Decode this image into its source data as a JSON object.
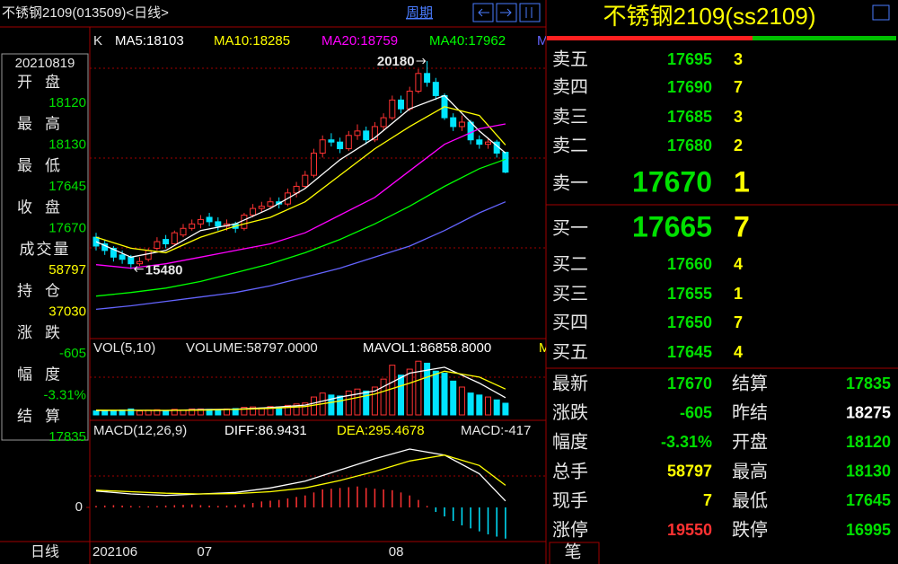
{
  "header": {
    "title": "不锈钢2109(013509)<日线>",
    "period": "周期"
  },
  "info_panel": {
    "date": "20210819",
    "items": [
      {
        "label": "开盘",
        "value": "18120",
        "color": "#00e000"
      },
      {
        "label": "最高",
        "value": "18130",
        "color": "#00e000"
      },
      {
        "label": "最低",
        "value": "17645",
        "color": "#00e000"
      },
      {
        "label": "收盘",
        "value": "17670",
        "color": "#00e000"
      },
      {
        "label": "成交量",
        "value": "58797",
        "color": "#ffff00"
      },
      {
        "label": "持仓",
        "value": "37030",
        "color": "#ffff00"
      },
      {
        "label": "涨跌",
        "value": "-605",
        "color": "#00e000"
      },
      {
        "label": "幅度",
        "value": "-3.31%",
        "color": "#00e000"
      },
      {
        "label": "结算",
        "value": "17835",
        "color": "#00e000"
      }
    ]
  },
  "chart_data": [
    {
      "type": "candlestick",
      "title": "K",
      "up_color": "#ff3232",
      "down_color": "#00e4ff",
      "categories": [
        "202106",
        null,
        null,
        null,
        null,
        null,
        null,
        null,
        null,
        null,
        null,
        null,
        "07",
        null,
        null,
        null,
        null,
        null,
        null,
        null,
        null,
        null,
        null,
        null,
        null,
        null,
        null,
        null,
        null,
        null,
        null,
        null,
        null,
        null,
        "08",
        null,
        null,
        null,
        null,
        null,
        null,
        null,
        null,
        null,
        null,
        null,
        null,
        null
      ],
      "open": [
        16200,
        16050,
        15950,
        15800,
        15750,
        15600,
        15700,
        15950,
        16150,
        16050,
        16250,
        16400,
        16500,
        16650,
        16550,
        16450,
        16500,
        16400,
        16700,
        16850,
        16900,
        17000,
        16950,
        17200,
        17350,
        17600,
        18100,
        18400,
        18350,
        18200,
        18500,
        18600,
        18400,
        18700,
        18900,
        19300,
        19100,
        19500,
        19900,
        19700,
        19400,
        18900,
        18700,
        18800,
        18400,
        18300,
        18350,
        18120
      ],
      "high": [
        16300,
        16150,
        16000,
        15900,
        15800,
        15750,
        15950,
        16200,
        16250,
        16350,
        16500,
        16600,
        16700,
        16750,
        16650,
        16600,
        16550,
        16750,
        16950,
        17000,
        17100,
        17100,
        17300,
        17450,
        17700,
        18200,
        18500,
        18550,
        18450,
        18600,
        18750,
        18700,
        18800,
        19000,
        19400,
        19400,
        19600,
        20000,
        20180,
        19800,
        19450,
        19000,
        18950,
        18850,
        18500,
        18450,
        18400,
        18130
      ],
      "low": [
        15900,
        15800,
        15650,
        15600,
        15480,
        15550,
        15650,
        15900,
        15950,
        16000,
        16200,
        16350,
        16400,
        16450,
        16350,
        16350,
        16300,
        16350,
        16650,
        16750,
        16850,
        16850,
        16900,
        17100,
        17300,
        17550,
        18000,
        18250,
        18100,
        18150,
        18400,
        18300,
        18350,
        18600,
        18850,
        19000,
        19050,
        19450,
        19600,
        19300,
        18850,
        18600,
        18600,
        18300,
        18200,
        18200,
        18000,
        17645
      ],
      "close": [
        16000,
        15900,
        15750,
        15700,
        15600,
        15650,
        15900,
        16100,
        16050,
        16300,
        16400,
        16500,
        16600,
        16550,
        16450,
        16500,
        16400,
        16700,
        16850,
        16900,
        17000,
        16950,
        17200,
        17350,
        17600,
        18100,
        18400,
        18350,
        18200,
        18500,
        18600,
        18400,
        18700,
        18900,
        19300,
        19100,
        19500,
        19900,
        19700,
        19400,
        18900,
        18700,
        18800,
        18400,
        18300,
        18350,
        18100,
        17670
      ],
      "ylim": [
        13950,
        20850
      ],
      "series": [
        {
          "name": "MA5:18103",
          "color": "#ffffff",
          "x": [
            0,
            4,
            8,
            12,
            16,
            20,
            24,
            28,
            32,
            36,
            40,
            44,
            47
          ],
          "values": [
            16100,
            15750,
            15900,
            16350,
            16500,
            16850,
            17300,
            17950,
            18450,
            19100,
            19400,
            18600,
            18103
          ]
        },
        {
          "name": "MA10:18285",
          "color": "#ffff00",
          "x": [
            0,
            4,
            8,
            12,
            16,
            20,
            24,
            28,
            32,
            36,
            40,
            44,
            47
          ],
          "values": [
            16200,
            15950,
            15850,
            16200,
            16450,
            16650,
            17000,
            17600,
            18200,
            18700,
            19150,
            18950,
            18285
          ]
        },
        {
          "name": "MA20:18759",
          "color": "#ff00ff",
          "x": [
            0,
            4,
            8,
            12,
            16,
            20,
            24,
            28,
            32,
            36,
            40,
            44,
            47
          ],
          "values": [
            15580,
            15500,
            15600,
            15750,
            15900,
            16050,
            16300,
            16700,
            17100,
            17700,
            18300,
            18650,
            18759
          ]
        },
        {
          "name": "MA40:17962",
          "color": "#00ff00",
          "x": [
            0,
            4,
            8,
            12,
            16,
            20,
            24,
            28,
            32,
            36,
            40,
            44,
            47
          ],
          "values": [
            14870,
            14950,
            15050,
            15200,
            15400,
            15600,
            15850,
            16150,
            16500,
            16900,
            17350,
            17750,
            17962
          ]
        },
        {
          "name": "M",
          "color": "#6464ff",
          "x": [
            0,
            4,
            8,
            12,
            16,
            20,
            24,
            28,
            32,
            36,
            40,
            44,
            47
          ],
          "values": [
            14570,
            14650,
            14750,
            14850,
            14950,
            15100,
            15300,
            15500,
            15750,
            16000,
            16350,
            16750,
            17000
          ]
        }
      ]
    },
    {
      "type": "bar",
      "title": "VOL(5,10)",
      "subtitle": "VOLUME:58797.0000",
      "values": [
        20000,
        18000,
        22000,
        25000,
        30000,
        20000,
        24000,
        26000,
        20000,
        28000,
        25000,
        30000,
        30000,
        28000,
        26000,
        30000,
        32000,
        38000,
        40000,
        35000,
        42000,
        40000,
        48000,
        55000,
        60000,
        90000,
        110000,
        100000,
        95000,
        120000,
        130000,
        120000,
        140000,
        180000,
        250000,
        200000,
        230000,
        270000,
        260000,
        220000,
        210000,
        170000,
        140000,
        110000,
        100000,
        90000,
        75500,
        58797
      ],
      "ylim": [
        0,
        280000
      ],
      "series": [
        {
          "name": "MAVOL1:86858.8000",
          "color": "#ffffff",
          "x": [
            0,
            4,
            8,
            12,
            16,
            20,
            24,
            28,
            32,
            36,
            40,
            44,
            47
          ],
          "values": [
            22000,
            23000,
            22000,
            26000,
            29000,
            37000,
            49000,
            90000,
            120000,
            210000,
            240000,
            160000,
            86858.8
          ]
        },
        {
          "name": "M",
          "color": "#ffff00",
          "x": [
            0,
            4,
            8,
            12,
            16,
            20,
            24,
            28,
            32,
            36,
            40,
            44,
            47
          ],
          "values": [
            24000,
            23000,
            23000,
            24000,
            28000,
            33000,
            42000,
            70000,
            105000,
            160000,
            220000,
            190000,
            130000
          ]
        }
      ]
    },
    {
      "type": "macd",
      "title": "MACD(12,26,9)",
      "hist_label": "MACD:-417",
      "values": [
        20,
        25,
        30,
        25,
        20,
        15,
        15,
        20,
        25,
        30,
        35,
        40,
        30,
        25,
        20,
        25,
        30,
        40,
        60,
        80,
        90,
        100,
        120,
        140,
        160,
        200,
        240,
        250,
        260,
        270,
        280,
        260,
        250,
        240,
        230,
        200,
        160,
        100,
        20,
        -60,
        -120,
        -180,
        -240,
        -280,
        -320,
        -360,
        -390,
        -417
      ],
      "ylim": [
        -420,
        840
      ],
      "yticks": [
        0
      ],
      "series": [
        {
          "name": "DIFF:86.9431",
          "color": "#ffffff",
          "x": [
            0,
            4,
            8,
            12,
            16,
            20,
            24,
            28,
            32,
            36,
            40,
            44,
            47
          ],
          "values": [
            220,
            180,
            160,
            180,
            200,
            260,
            350,
            500,
            650,
            780,
            700,
            450,
            86.9431
          ]
        },
        {
          "name": "DEA:295.4678",
          "color": "#ffff00",
          "x": [
            0,
            4,
            8,
            12,
            16,
            20,
            24,
            28,
            32,
            36,
            40,
            44,
            47
          ],
          "values": [
            230,
            210,
            190,
            180,
            185,
            210,
            260,
            360,
            480,
            620,
            700,
            560,
            295.4678
          ]
        }
      ]
    }
  ],
  "quote": {
    "title": "不锈钢2109(ss2109)",
    "asks": [
      [
        "卖五",
        "17695",
        "3"
      ],
      [
        "卖四",
        "17690",
        "7"
      ],
      [
        "卖三",
        "17685",
        "3"
      ],
      [
        "卖二",
        "17680",
        "2"
      ],
      [
        "卖一",
        "17670",
        "1"
      ]
    ],
    "bids": [
      [
        "买一",
        "17665",
        "7"
      ],
      [
        "买二",
        "17660",
        "4"
      ],
      [
        "买三",
        "17655",
        "1"
      ],
      [
        "买四",
        "17650",
        "7"
      ],
      [
        "买五",
        "17645",
        "4"
      ]
    ],
    "stats": [
      {
        "label": "最新",
        "value": "17670",
        "color": "#00e000",
        "label2": "结算",
        "value2": "17835",
        "color2": "#00e000"
      },
      {
        "label": "涨跌",
        "value": "-605",
        "color": "#00e000",
        "label2": "昨结",
        "value2": "18275",
        "color2": "#ffffff"
      },
      {
        "label": "幅度",
        "value": "-3.31%",
        "color": "#00e000",
        "label2": "开盘",
        "value2": "18120",
        "color2": "#00e000"
      },
      {
        "label": "总手",
        "value": "58797",
        "color": "#ffff00",
        "label2": "最高",
        "value2": "18130",
        "color2": "#00e000"
      },
      {
        "label": "现手",
        "value": "7",
        "color": "#ffff00",
        "label2": "最低",
        "value2": "17645",
        "color2": "#00e000"
      },
      {
        "label": "涨停",
        "value": "19550",
        "color": "#ff3232",
        "label2": "跌停",
        "value2": "16995",
        "color2": "#00e000"
      }
    ],
    "tab": "笔"
  },
  "footer": {
    "period": "日线"
  }
}
